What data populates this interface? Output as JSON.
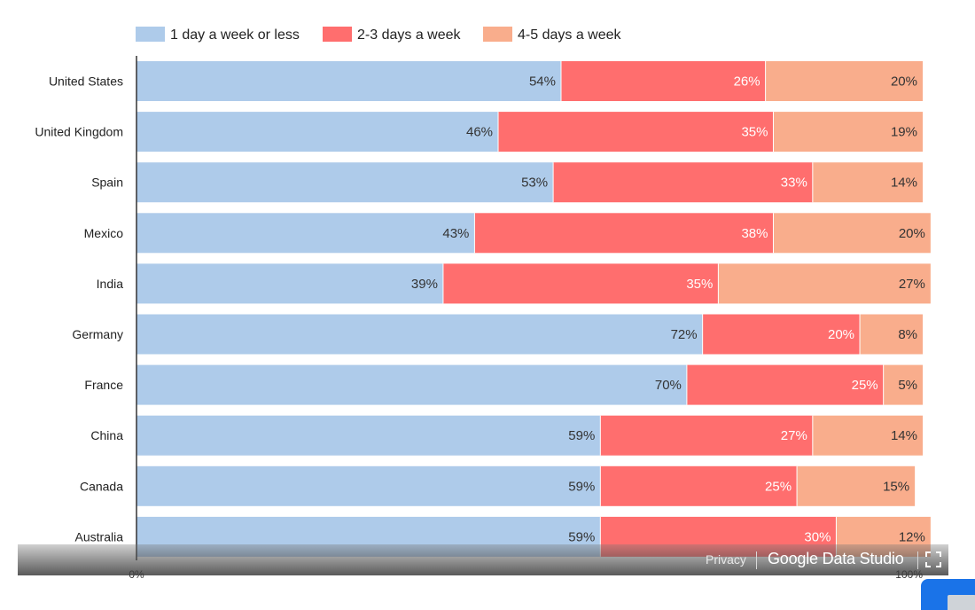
{
  "chart_data": {
    "type": "bar",
    "orientation": "horizontal",
    "stacked": true,
    "percent_stacked": true,
    "categories": [
      "United States",
      "United Kingdom",
      "Spain",
      "Mexico",
      "India",
      "Germany",
      "France",
      "China",
      "Canada",
      "Australia"
    ],
    "series": [
      {
        "name": "1 day a week or less",
        "color": "#aecbea",
        "values": [
          54,
          46,
          53,
          43,
          39,
          72,
          70,
          59,
          59,
          59
        ]
      },
      {
        "name": "2-3 days a week",
        "color": "#ff6e6e",
        "values": [
          26,
          35,
          33,
          38,
          35,
          20,
          25,
          27,
          25,
          30
        ]
      },
      {
        "name": "4-5 days a week",
        "color": "#f9ad8c",
        "values": [
          20,
          19,
          14,
          20,
          27,
          8,
          5,
          14,
          15,
          12
        ]
      }
    ],
    "data_labels": [
      [
        "54%",
        "26%",
        "20%"
      ],
      [
        "46%",
        "35%",
        "19%"
      ],
      [
        "53%",
        "33%",
        "14%"
      ],
      [
        "43%",
        "38%",
        "20%"
      ],
      [
        "39%",
        "35%",
        "27%"
      ],
      [
        "72%",
        "20%",
        "8%"
      ],
      [
        "70%",
        "25%",
        "5%"
      ],
      [
        "59%",
        "27%",
        "14%"
      ],
      [
        "59%",
        "25%",
        "15%"
      ],
      [
        "59%",
        "30%",
        "12%"
      ]
    ],
    "x_ticks": [
      "0%",
      "100%"
    ],
    "xlim": [
      0,
      100
    ],
    "legend_position": "top-left",
    "grid": false
  },
  "footer": {
    "privacy_label": "Privacy",
    "brand_label": "Google Data Studio",
    "fullscreen_icon": "fullscreen-icon"
  },
  "corner_widget": {
    "icon": "chat-bubble-icon"
  }
}
